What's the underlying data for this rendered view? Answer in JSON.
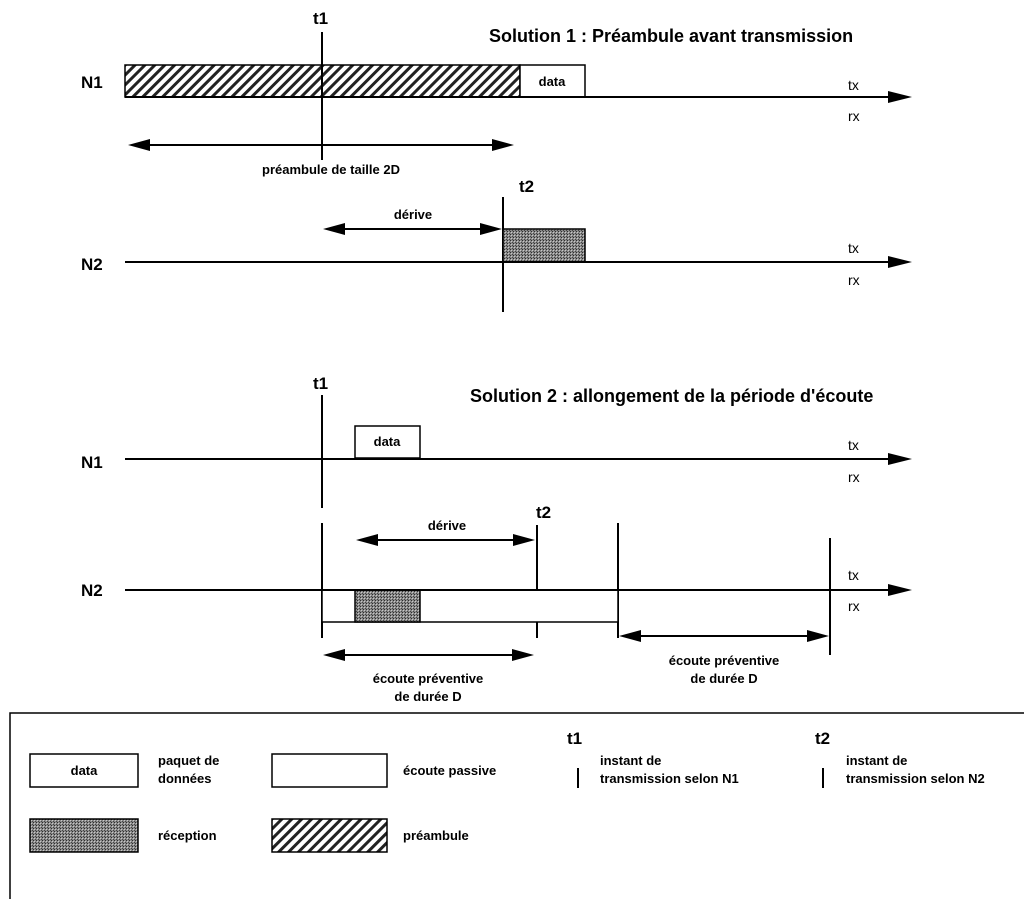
{
  "solution1": {
    "title": "Solution 1 :  Préambule avant transmission",
    "t1": "t1",
    "t2": "t2",
    "n1": "N1",
    "n2": "N2",
    "tx": "tx",
    "rx": "rx",
    "data": "data",
    "preamble_label": "préambule de taille 2D",
    "drift_label": "dérive"
  },
  "solution2": {
    "title": "Solution 2 : allongement de la période d'écoute",
    "t1": "t1",
    "t2": "t2",
    "n1": "N1",
    "n2": "N2",
    "tx": "tx",
    "rx": "rx",
    "data": "data",
    "drift_label": "dérive",
    "listen_a_line1": "écoute préventive",
    "listen_a_line2": "de durée D",
    "listen_b_line1": "écoute préventive",
    "listen_b_line2": "de durée D"
  },
  "legend": {
    "data_box": "data",
    "data_desc_line1": "paquet de",
    "data_desc_line2": "données",
    "passive_desc": "écoute passive",
    "t1": "t1",
    "t1_desc_line1": "instant de",
    "t1_desc_line2": "transmission selon N1",
    "t2": "t2",
    "t2_desc_line1": "instant de",
    "t2_desc_line2": "transmission selon N2",
    "reception_desc": "réception",
    "preamble_desc": "préambule"
  }
}
